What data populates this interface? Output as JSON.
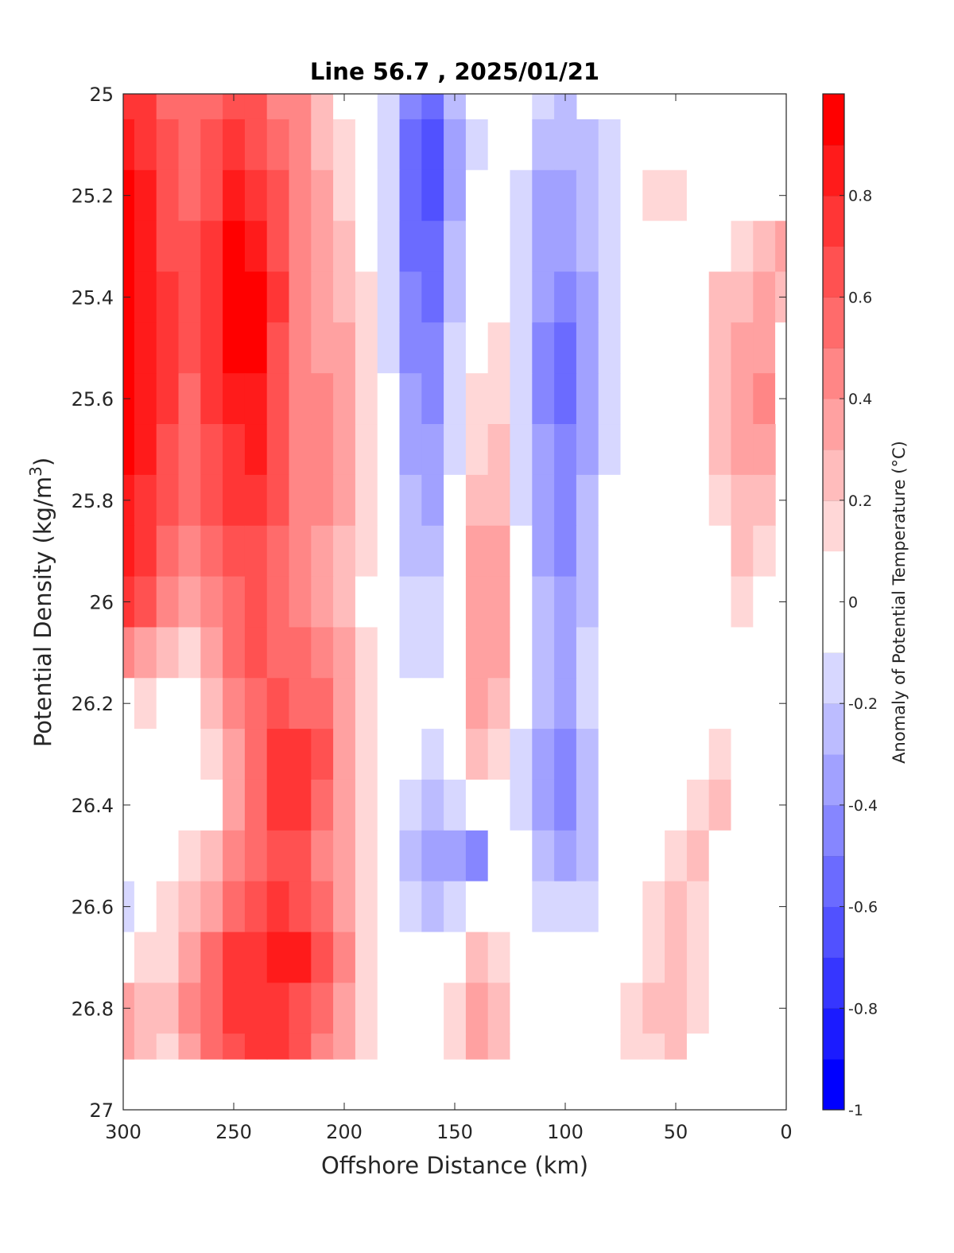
{
  "chart_data": {
    "type": "heatmap",
    "title": "Line 56.7 , 2025/01/21",
    "xlabel": "Offshore Distance (km)",
    "ylabel": "Potential Density (kg/m",
    "ylabel_superscript": "3",
    "ylabel_suffix": ")",
    "xlim": [
      300,
      0
    ],
    "ylim": [
      25,
      27
    ],
    "x_reversed": true,
    "y_reversed": true,
    "xticks": [
      "300",
      "250",
      "200",
      "150",
      "100",
      "50",
      "0"
    ],
    "yticks": [
      "25",
      "25.2",
      "25.4",
      "25.6",
      "25.8",
      "26",
      "26.2",
      "26.4",
      "26.6",
      "26.8",
      "27"
    ],
    "colorbar": {
      "label": "Anomaly of Potential Temperature (°C)",
      "ticks": [
        "-1",
        "-0.8",
        "-0.6",
        "-0.4",
        "-0.2",
        "0",
        "0.2",
        "0.4",
        "0.6",
        "0.8"
      ],
      "levels": [
        -1,
        -0.9,
        -0.8,
        -0.7,
        -0.6,
        -0.5,
        -0.4,
        -0.3,
        -0.2,
        -0.1,
        0.1,
        0.2,
        0.3,
        0.4,
        0.5,
        0.6,
        0.7,
        0.8,
        0.9,
        1.0
      ],
      "colors": {
        "min": "#0000ff",
        "mid": "#ffffff",
        "max": "#ff0000"
      }
    },
    "data_extent": {
      "x": [
        300,
        0
      ],
      "y": [
        25,
        26.9
      ]
    },
    "x": [
      300,
      290,
      280,
      270,
      260,
      250,
      240,
      230,
      220,
      210,
      200,
      190,
      180,
      170,
      160,
      150,
      140,
      130,
      120,
      110,
      100,
      90,
      80,
      70,
      60,
      50,
      40,
      30,
      20,
      10,
      0
    ],
    "y": [
      25.0,
      25.1,
      25.2,
      25.3,
      25.4,
      25.5,
      25.6,
      25.7,
      25.8,
      25.9,
      26.0,
      26.1,
      26.2,
      26.3,
      26.4,
      26.5,
      26.6,
      26.7,
      26.8,
      26.9
    ],
    "z": [
      [
        0.75,
        0.7,
        0.55,
        0.5,
        0.55,
        0.62,
        0.6,
        0.48,
        0.4,
        0.25,
        0.1,
        0.0,
        -0.15,
        -0.45,
        -0.55,
        -0.3,
        -0.1,
        0.0,
        -0.05,
        -0.2,
        -0.25,
        null,
        null,
        null,
        null,
        null,
        null,
        null,
        null,
        null,
        null
      ],
      [
        0.85,
        0.78,
        0.6,
        0.55,
        0.62,
        0.72,
        0.68,
        0.55,
        0.42,
        0.28,
        0.12,
        0.02,
        -0.18,
        -0.52,
        -0.62,
        -0.35,
        -0.12,
        0.02,
        -0.1,
        -0.28,
        -0.3,
        -0.22,
        -0.12,
        0.0,
        0.05,
        null,
        null,
        null,
        null,
        null,
        null
      ],
      [
        0.9,
        0.82,
        0.65,
        0.58,
        0.68,
        0.82,
        0.78,
        0.6,
        0.42,
        0.3,
        0.18,
        0.05,
        -0.2,
        -0.55,
        -0.65,
        -0.35,
        -0.1,
        0.05,
        -0.12,
        -0.32,
        -0.35,
        -0.25,
        -0.15,
        0.0,
        0.12,
        0.12,
        0.0,
        0.0,
        0.0,
        0.0,
        null
      ],
      [
        0.92,
        0.85,
        0.68,
        0.6,
        0.72,
        0.92,
        0.88,
        0.65,
        0.45,
        0.32,
        0.2,
        0.08,
        -0.2,
        -0.52,
        -0.6,
        -0.3,
        0.0,
        0.08,
        -0.15,
        -0.35,
        -0.4,
        -0.28,
        -0.15,
        0.0,
        0.1,
        0.05,
        0.0,
        0.05,
        0.15,
        0.25,
        0.3
      ],
      [
        0.95,
        0.88,
        0.7,
        0.62,
        0.75,
        0.98,
        0.95,
        0.7,
        0.48,
        0.35,
        0.25,
        0.12,
        -0.15,
        -0.45,
        -0.55,
        -0.25,
        0.02,
        0.1,
        -0.18,
        -0.38,
        -0.45,
        -0.32,
        -0.15,
        0.0,
        0.05,
        0.0,
        0.1,
        0.2,
        0.25,
        0.3,
        0.2
      ],
      [
        0.95,
        0.88,
        0.72,
        0.6,
        0.72,
        0.95,
        0.92,
        0.68,
        0.48,
        0.38,
        0.3,
        0.15,
        -0.12,
        -0.42,
        -0.5,
        -0.2,
        0.05,
        0.12,
        -0.2,
        -0.42,
        -0.55,
        -0.35,
        -0.15,
        0.0,
        0.05,
        0.0,
        0.05,
        0.2,
        0.3,
        0.35,
        0.1
      ],
      [
        0.92,
        0.85,
        0.7,
        0.58,
        0.7,
        0.88,
        0.85,
        0.65,
        0.48,
        0.42,
        0.35,
        0.18,
        -0.1,
        -0.4,
        -0.45,
        -0.15,
        0.12,
        0.15,
        -0.2,
        -0.42,
        -0.55,
        -0.35,
        -0.15,
        0.0,
        0.0,
        0.0,
        0.05,
        0.2,
        0.32,
        0.42,
        0.05
      ],
      [
        0.9,
        0.82,
        0.65,
        0.55,
        0.68,
        0.78,
        0.8,
        0.62,
        0.48,
        0.42,
        0.32,
        0.18,
        -0.08,
        -0.35,
        -0.4,
        -0.12,
        0.18,
        0.2,
        -0.18,
        -0.4,
        -0.48,
        -0.32,
        -0.12,
        0.0,
        0.0,
        0.0,
        0.05,
        0.2,
        0.3,
        0.35,
        null
      ],
      [
        0.88,
        0.78,
        0.6,
        0.52,
        0.62,
        0.7,
        0.72,
        0.6,
        0.48,
        0.4,
        0.3,
        0.15,
        -0.05,
        -0.3,
        -0.35,
        -0.08,
        0.25,
        0.25,
        -0.15,
        -0.38,
        -0.45,
        -0.3,
        -0.1,
        0.0,
        0.0,
        0.0,
        0.0,
        0.15,
        0.25,
        0.28,
        null
      ],
      [
        0.82,
        0.72,
        0.55,
        0.45,
        0.55,
        0.65,
        0.65,
        0.58,
        0.48,
        0.38,
        0.28,
        0.12,
        -0.05,
        -0.25,
        -0.3,
        -0.05,
        0.3,
        0.3,
        -0.1,
        -0.35,
        -0.42,
        -0.25,
        -0.08,
        0.0,
        0.0,
        0.0,
        0.0,
        0.1,
        0.2,
        0.15,
        null
      ],
      [
        0.75,
        0.6,
        0.42,
        0.35,
        0.48,
        0.58,
        0.62,
        0.55,
        0.48,
        0.38,
        0.28,
        0.1,
        -0.05,
        -0.18,
        -0.2,
        0.0,
        0.35,
        0.35,
        -0.05,
        -0.3,
        -0.38,
        -0.22,
        -0.05,
        0.0,
        0.0,
        0.0,
        0.0,
        0.05,
        0.15,
        0.05,
        null
      ],
      [
        0.45,
        0.35,
        0.22,
        0.12,
        0.35,
        0.55,
        0.6,
        0.55,
        0.5,
        0.4,
        0.3,
        0.12,
        -0.02,
        -0.12,
        -0.12,
        0.05,
        0.35,
        0.32,
        -0.05,
        -0.25,
        -0.32,
        -0.18,
        -0.05,
        0.0,
        0.0,
        0.0,
        0.0,
        0.0,
        0.05,
        0.0,
        null
      ],
      [
        0.05,
        0.15,
        0.08,
        0.05,
        0.22,
        0.45,
        0.58,
        0.62,
        0.58,
        0.5,
        0.35,
        0.15,
        0.0,
        -0.05,
        0.0,
        0.1,
        0.3,
        0.25,
        -0.08,
        -0.28,
        -0.35,
        -0.2,
        -0.05,
        0.0,
        0.0,
        0.0,
        0.05,
        0.1,
        0.0,
        0.0,
        null
      ],
      [
        -0.02,
        0.0,
        0.0,
        0.0,
        0.12,
        0.35,
        0.55,
        0.72,
        0.78,
        0.6,
        0.35,
        0.15,
        0.0,
        -0.1,
        -0.12,
        0.05,
        0.22,
        0.12,
        -0.12,
        -0.35,
        -0.45,
        -0.28,
        -0.08,
        0.0,
        0.0,
        0.0,
        0.05,
        0.15,
        0.0,
        0.0,
        null
      ],
      [
        -0.05,
        0.0,
        0.0,
        0.0,
        0.1,
        0.3,
        0.55,
        0.72,
        0.72,
        0.55,
        0.32,
        0.12,
        0.0,
        -0.2,
        -0.3,
        -0.2,
        -0.05,
        0.0,
        -0.15,
        -0.38,
        -0.48,
        -0.3,
        -0.08,
        0.0,
        0.0,
        0.05,
        0.15,
        0.2,
        0.0,
        0.0,
        null
      ],
      [
        -0.1,
        0.0,
        0.05,
        0.15,
        0.25,
        0.4,
        0.55,
        0.62,
        0.6,
        0.48,
        0.3,
        0.12,
        0.0,
        -0.22,
        -0.32,
        -0.38,
        -0.42,
        -0.1,
        -0.1,
        -0.3,
        -0.4,
        -0.25,
        -0.08,
        0.0,
        0.1,
        0.15,
        0.2,
        0.0,
        0.0,
        0.0,
        null
      ],
      [
        -0.12,
        0.05,
        0.12,
        0.22,
        0.38,
        0.55,
        0.65,
        0.72,
        0.68,
        0.55,
        0.35,
        0.15,
        0.0,
        -0.12,
        -0.25,
        -0.2,
        -0.1,
        0.0,
        -0.05,
        -0.15,
        -0.2,
        -0.12,
        -0.02,
        0.05,
        0.15,
        0.2,
        0.18,
        0.0,
        0.0,
        0.0,
        null
      ],
      [
        0.1,
        0.12,
        0.18,
        0.35,
        0.5,
        0.7,
        0.78,
        0.8,
        0.82,
        0.62,
        0.4,
        0.18,
        0.0,
        -0.05,
        -0.1,
        0.05,
        0.2,
        0.18,
        0.0,
        0.0,
        0.0,
        0.0,
        0.0,
        0.08,
        0.15,
        0.2,
        0.18,
        0.0,
        0.0,
        0.0,
        null
      ],
      [
        0.3,
        0.25,
        0.2,
        0.4,
        0.55,
        0.72,
        0.78,
        0.75,
        0.68,
        0.55,
        0.38,
        0.15,
        0.0,
        0.0,
        0.0,
        0.15,
        0.3,
        0.2,
        0.05,
        0.0,
        0.0,
        0.0,
        0.05,
        0.12,
        0.2,
        0.22,
        0.15,
        0.0,
        0.0,
        0.0,
        null
      ],
      [
        0.35,
        0.25,
        0.18,
        0.35,
        0.5,
        0.68,
        0.72,
        0.72,
        0.62,
        0.48,
        0.32,
        0.12,
        0.0,
        0.0,
        0.0,
        0.15,
        0.35,
        0.22,
        0.05,
        0.0,
        0.0,
        0.0,
        0.05,
        0.12,
        0.18,
        0.2,
        0.1,
        0.0,
        0.0,
        0.0,
        null
      ]
    ]
  }
}
